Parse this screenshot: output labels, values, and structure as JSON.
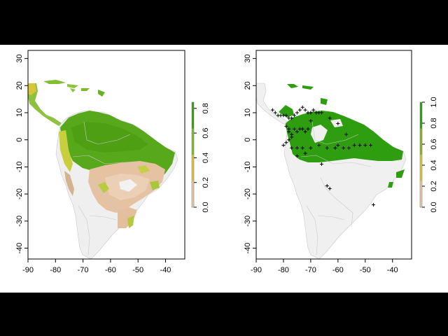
{
  "panels": [
    {
      "id": "suitability",
      "x_ticks": [
        "-90",
        "-80",
        "-70",
        "-60",
        "-50",
        "-40"
      ],
      "y_ticks": [
        "30",
        "20",
        "10",
        "0",
        "-10",
        "-20",
        "-30",
        "-40"
      ],
      "legend": {
        "ticks": [
          "0.8",
          "0.6",
          "0.4",
          "0.2",
          "0.0"
        ]
      }
    },
    {
      "id": "binary",
      "x_ticks": [
        "-90",
        "-80",
        "-70",
        "-60",
        "-50",
        "-40"
      ],
      "y_ticks": [
        "30",
        "20",
        "10",
        "0",
        "-10",
        "-20",
        "-30",
        "-40"
      ],
      "legend": {
        "ticks": [
          "1.0",
          "0.8",
          "0.6",
          "0.4",
          "0.2",
          "0.0"
        ]
      }
    }
  ],
  "chart_data": [
    {
      "type": "heatmap",
      "title": "",
      "xlabel": "",
      "ylabel": "",
      "xlim": [
        -90,
        -33
      ],
      "ylim": [
        -44,
        33
      ],
      "value_range": [
        0,
        0.85
      ],
      "colors": {
        "high": "#3f9b12",
        "mid": "#d6c638",
        "low": "#e8c7a4",
        "zero": "#f2f2f2"
      },
      "note_regions": [
        {
          "region": "Amazon basin",
          "value": 0.8
        },
        {
          "region": "Central Brazil",
          "value": 0.15
        },
        {
          "region": "Caribbean islands",
          "value": 0.7
        }
      ]
    },
    {
      "type": "heatmap",
      "title": "",
      "xlabel": "",
      "ylabel": "",
      "xlim": [
        -90,
        -33
      ],
      "ylim": [
        -44,
        33
      ],
      "value_range": [
        0,
        1.0
      ],
      "colors": {
        "presence": "#2e9e10",
        "absence": "#f0f0f0"
      },
      "occurrence_points": [
        [
          -84,
          11
        ],
        [
          -83,
          10
        ],
        [
          -82,
          9
        ],
        [
          -81,
          9
        ],
        [
          -80,
          9
        ],
        [
          -79,
          9
        ],
        [
          -78,
          8
        ],
        [
          -77,
          8
        ],
        [
          -76,
          9
        ],
        [
          -75,
          10
        ],
        [
          -74,
          11
        ],
        [
          -73,
          12
        ],
        [
          -72,
          11
        ],
        [
          -71,
          10
        ],
        [
          -70,
          10
        ],
        [
          -69,
          11
        ],
        [
          -68,
          10
        ],
        [
          -67,
          10
        ],
        [
          -66,
          10
        ],
        [
          -79,
          5
        ],
        [
          -78,
          4
        ],
        [
          -78,
          3
        ],
        [
          -77,
          2
        ],
        [
          -77,
          1
        ],
        [
          -78,
          0
        ],
        [
          -79,
          -1
        ],
        [
          -80,
          -2
        ],
        [
          -76,
          4
        ],
        [
          -75,
          3
        ],
        [
          -74,
          4
        ],
        [
          -73,
          4
        ],
        [
          -72,
          3
        ],
        [
          -71,
          4
        ],
        [
          -77,
          -3
        ],
        [
          -75,
          -3
        ],
        [
          -73,
          -3
        ],
        [
          -70,
          -3
        ],
        [
          -67,
          -2
        ],
        [
          -64,
          -3
        ],
        [
          -61,
          -3
        ],
        [
          -60,
          -2
        ],
        [
          -58,
          -3
        ],
        [
          -56,
          -3
        ],
        [
          -54,
          -2
        ],
        [
          -52,
          -2
        ],
        [
          -50,
          -2
        ],
        [
          -48,
          -2
        ],
        [
          -70,
          7
        ],
        [
          -63,
          8
        ],
        [
          -60,
          6
        ],
        [
          -57,
          2
        ],
        [
          -64,
          -17
        ],
        [
          -63,
          -18
        ],
        [
          -47,
          -24
        ],
        [
          -75,
          -6
        ],
        [
          -72,
          -5
        ],
        [
          -66,
          -9
        ]
      ]
    }
  ]
}
